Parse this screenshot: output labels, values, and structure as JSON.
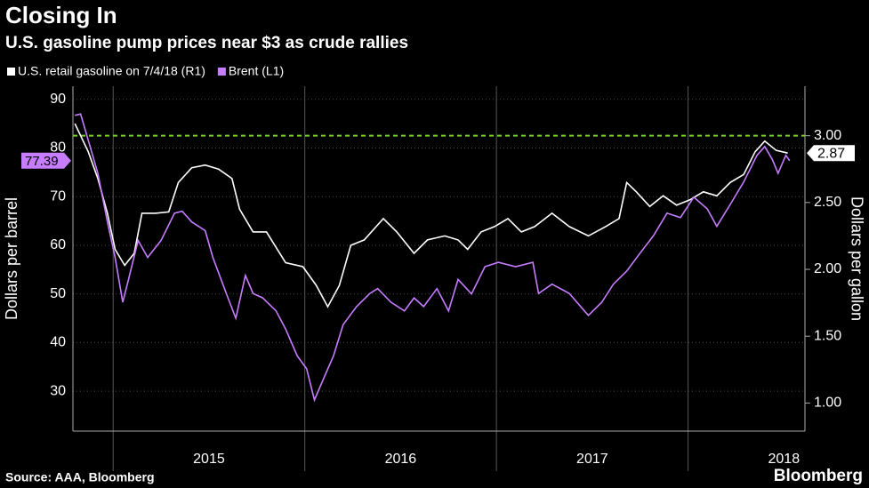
{
  "chart_data": {
    "type": "line",
    "title": "Closing In",
    "subtitle": "U.S. gasoline pump prices near $3 as crude rallies",
    "ylabel": "Dollars per barrel",
    "y2label": "Dollars per gallon",
    "source": "Source: AAA, Bloomberg",
    "brand": "Bloomberg",
    "xlim": [
      2014.79,
      2018.61
    ],
    "xticks": [
      {
        "value": 2015.5,
        "label": "2015"
      },
      {
        "value": 2016.5,
        "label": "2016"
      },
      {
        "value": 2017.5,
        "label": "2017"
      },
      {
        "value": 2018.5,
        "label": "2018"
      }
    ],
    "ylim": [
      21.8,
      92.7
    ],
    "yticks": [
      30,
      40,
      50,
      60,
      70,
      80,
      90
    ],
    "y2lim": [
      0.79,
      3.37
    ],
    "y2ticks": [
      {
        "value": 1,
        "label": "1.00"
      },
      {
        "value": 1.5,
        "label": "1.50"
      },
      {
        "value": 2,
        "label": "2.00"
      },
      {
        "value": 2.5,
        "label": "2.50"
      },
      {
        "value": 3,
        "label": "3.00"
      }
    ],
    "reference_line": {
      "value": 3,
      "axis": "y2",
      "color": "#7ed321"
    },
    "series": [
      {
        "name": "U.S. retail gasoline on 7/4/18 (R1)",
        "color": "#ffffff",
        "axis": "y2",
        "x": [
          2014.8,
          2014.87,
          2014.92,
          2014.97,
          2015.01,
          2015.06,
          2015.11,
          2015.15,
          2015.22,
          2015.29,
          2015.34,
          2015.41,
          2015.48,
          2015.55,
          2015.62,
          2015.66,
          2015.73,
          2015.8,
          2015.9,
          2015.99,
          2016.06,
          2016.12,
          2016.18,
          2016.24,
          2016.31,
          2016.41,
          2016.48,
          2016.57,
          2016.64,
          2016.73,
          2016.8,
          2016.85,
          2016.92,
          2016.99,
          2017.06,
          2017.13,
          2017.2,
          2017.29,
          2017.38,
          2017.48,
          2017.57,
          2017.64,
          2017.68,
          2017.73,
          2017.8,
          2017.87,
          2017.94,
          2018.01,
          2018.08,
          2018.15,
          2018.22,
          2018.29,
          2018.35,
          2018.4,
          2018.46,
          2018.52
        ],
        "values": [
          3.09,
          2.88,
          2.68,
          2.42,
          2.15,
          2.03,
          2.12,
          2.42,
          2.42,
          2.43,
          2.65,
          2.76,
          2.78,
          2.75,
          2.68,
          2.45,
          2.28,
          2.28,
          2.05,
          2.02,
          1.88,
          1.72,
          1.88,
          2.18,
          2.22,
          2.38,
          2.28,
          2.12,
          2.22,
          2.25,
          2.22,
          2.15,
          2.28,
          2.32,
          2.38,
          2.28,
          2.32,
          2.42,
          2.32,
          2.25,
          2.32,
          2.38,
          2.65,
          2.58,
          2.47,
          2.55,
          2.48,
          2.52,
          2.58,
          2.55,
          2.65,
          2.71,
          2.88,
          2.96,
          2.89,
          2.87
        ]
      },
      {
        "name": "Brent  (L1)",
        "color": "#c77dff",
        "x": [
          2014.8,
          2014.83,
          2014.87,
          2014.92,
          2014.97,
          2015.01,
          2015.05,
          2015.08,
          2015.13,
          2015.18,
          2015.25,
          2015.32,
          2015.36,
          2015.41,
          2015.48,
          2015.52,
          2015.59,
          2015.64,
          2015.69,
          2015.73,
          2015.78,
          2015.85,
          2015.9,
          2015.96,
          2016.01,
          2016.05,
          2016.11,
          2016.15,
          2016.2,
          2016.27,
          2016.34,
          2016.38,
          2016.45,
          2016.52,
          2016.57,
          2016.62,
          2016.69,
          2016.75,
          2016.8,
          2016.87,
          2016.94,
          2017.01,
          2017.1,
          2017.19,
          2017.22,
          2017.29,
          2017.38,
          2017.48,
          2017.55,
          2017.61,
          2017.68,
          2017.75,
          2017.82,
          2017.89,
          2017.96,
          2018.03,
          2018.1,
          2018.15,
          2018.22,
          2018.29,
          2018.36,
          2018.4,
          2018.44,
          2018.47,
          2018.51,
          2018.53
        ],
        "values": [
          86.7,
          87,
          81.6,
          74.8,
          64.8,
          57.5,
          48.3,
          53,
          61,
          57.5,
          61,
          66.6,
          67,
          64.8,
          63,
          57.5,
          50.1,
          45,
          53.8,
          50.1,
          49.2,
          46.5,
          42.8,
          37.3,
          34.6,
          28.2,
          33.7,
          37.3,
          43.7,
          47.4,
          50.1,
          51.1,
          48.3,
          46.5,
          49.2,
          47.4,
          51.1,
          46.5,
          53,
          50,
          55.6,
          56.5,
          55.6,
          56.5,
          50.1,
          52,
          50.1,
          45.6,
          48.3,
          52,
          54.7,
          58.4,
          62,
          66.6,
          65.7,
          69.9,
          67.5,
          63.9,
          68.4,
          73,
          78.5,
          80.3,
          77.6,
          74.8,
          78.5,
          77.39
        ]
      }
    ]
  }
}
